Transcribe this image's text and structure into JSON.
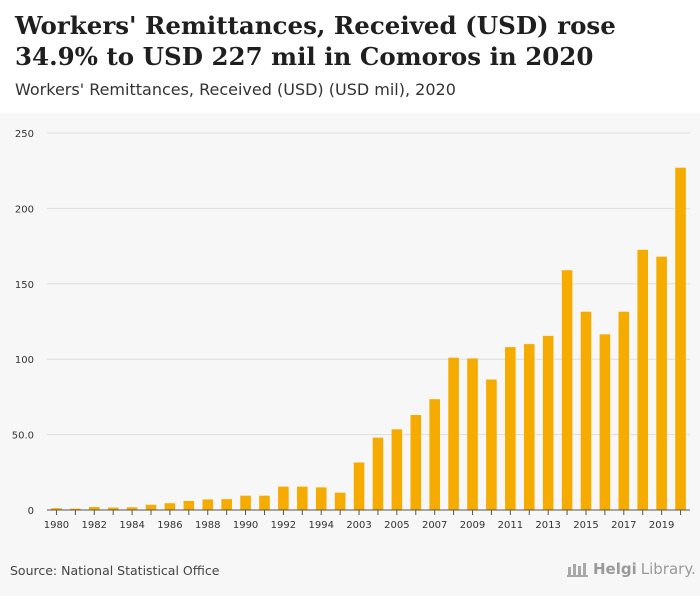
{
  "header": {
    "title": "Workers' Remittances, Received (USD) rose 34.9% to USD 227 mil in Comoros in 2020",
    "subtitle": "Workers' Remittances, Received (USD) (USD mil), 2020"
  },
  "footer": {
    "source": "Source: National Statistical Office",
    "logo_brand": "Helgi",
    "logo_suffix": "Library."
  },
  "colors": {
    "bar": "#f5ab00",
    "grid": "#dddddd",
    "axis": "#555555",
    "tick_text": "#333333"
  },
  "chart_data": {
    "type": "bar",
    "title": "Workers' Remittances, Received (USD) rose 34.9% to USD 227 mil in Comoros in 2020",
    "ylim": [
      0,
      250
    ],
    "yticks": [
      0,
      50,
      100,
      150,
      200,
      250
    ],
    "ytick_labels": [
      "0",
      "50.0",
      "100",
      "150",
      "200",
      "250"
    ],
    "grid": true,
    "categories": [
      "1980",
      "1981",
      "1982",
      "1983",
      "1984",
      "1985",
      "1986",
      "1987",
      "1988",
      "1989",
      "1990",
      "1991",
      "1992",
      "1993",
      "1994",
      "1995",
      "2003",
      "2004",
      "2005",
      "2006",
      "2007",
      "2008",
      "2009",
      "2010",
      "2011",
      "2012",
      "2013",
      "2014",
      "2015",
      "2016",
      "2017",
      "2018",
      "2019",
      "2020"
    ],
    "xtick_labels": [
      "1980",
      "",
      "1982",
      "",
      "1984",
      "",
      "1986",
      "",
      "1988",
      "",
      "1990",
      "",
      "1992",
      "",
      "1994",
      "",
      "2003",
      "",
      "2005",
      "",
      "2007",
      "",
      "2009",
      "",
      "2011",
      "",
      "2013",
      "",
      "2015",
      "",
      "2017",
      "",
      "2019",
      ""
    ],
    "values": [
      1.2,
      0.9,
      2.0,
      1.6,
      1.8,
      3.5,
      4.5,
      6.0,
      7.0,
      7.2,
      9.5,
      9.5,
      15.5,
      15.5,
      15.0,
      11.5,
      31.5,
      48.0,
      53.5,
      63.0,
      73.5,
      101.0,
      100.5,
      86.5,
      108.0,
      110.0,
      115.5,
      159.0,
      131.5,
      116.5,
      131.5,
      172.5,
      168.0,
      227.0
    ]
  }
}
